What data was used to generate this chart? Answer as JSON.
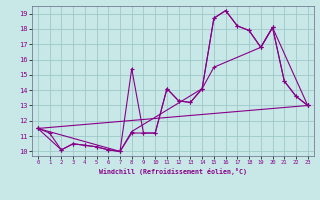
{
  "xlabel": "Windchill (Refroidissement éolien,°C)",
  "background_color": "#c8e8e8",
  "grid_color": "#a0c8c8",
  "line_color": "#880088",
  "xlim": [
    -0.5,
    23.5
  ],
  "ylim": [
    9.7,
    19.5
  ],
  "yticks": [
    10,
    11,
    12,
    13,
    14,
    15,
    16,
    17,
    18,
    19
  ],
  "xticks": [
    0,
    1,
    2,
    3,
    4,
    5,
    6,
    7,
    8,
    9,
    10,
    11,
    12,
    13,
    14,
    15,
    16,
    17,
    18,
    19,
    20,
    21,
    22,
    23
  ],
  "line1_x": [
    0,
    1,
    2,
    3,
    4,
    5,
    6,
    7,
    8,
    9,
    10,
    11,
    12,
    13,
    14,
    15,
    16,
    17,
    18,
    19,
    20,
    21,
    22,
    23
  ],
  "line1_y": [
    11.5,
    11.2,
    10.1,
    10.5,
    10.4,
    10.3,
    10.1,
    10.0,
    11.2,
    11.2,
    11.2,
    14.1,
    13.3,
    13.2,
    14.1,
    18.7,
    19.2,
    18.2,
    17.9,
    16.8,
    18.1,
    14.6,
    13.6,
    13.0
  ],
  "line2_x": [
    0,
    2,
    3,
    4,
    5,
    6,
    7,
    8,
    9,
    10,
    11,
    12,
    13,
    14,
    15,
    16,
    17,
    18,
    19,
    20,
    21,
    22,
    23
  ],
  "line2_y": [
    11.5,
    10.1,
    10.5,
    10.4,
    10.3,
    10.1,
    10.0,
    15.4,
    11.2,
    11.2,
    14.1,
    13.3,
    13.2,
    14.1,
    18.7,
    19.2,
    18.2,
    17.9,
    16.8,
    18.1,
    14.6,
    13.6,
    13.0
  ],
  "line3_x": [
    0,
    7,
    8,
    14,
    15,
    19,
    20,
    23
  ],
  "line3_y": [
    11.5,
    10.0,
    11.3,
    14.1,
    15.5,
    16.8,
    18.1,
    13.0
  ],
  "line4_x": [
    0,
    23
  ],
  "line4_y": [
    11.5,
    13.0
  ]
}
